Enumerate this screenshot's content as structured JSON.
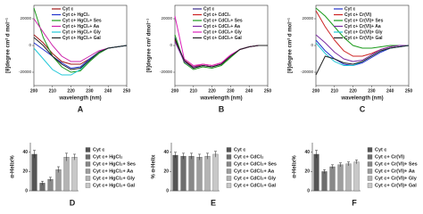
{
  "chart_data": [
    {
      "type": "line",
      "panel_label": "A",
      "xlabel": "wavelength (nm)",
      "ylabel": "[θ]degree cm² d mol⁻¹",
      "x": [
        200,
        205,
        210,
        215,
        220,
        225,
        230,
        235,
        240,
        245,
        250
      ],
      "xlim": [
        200,
        250
      ],
      "xticks": [
        200,
        210,
        220,
        230,
        240,
        250
      ],
      "ylim": [
        -30000,
        30000
      ],
      "yticks": [
        -20000,
        0,
        20000
      ],
      "series": [
        {
          "name": "Cyt c",
          "color": "#a01818",
          "values": [
            8000,
            2000,
            -6000,
            -12000,
            -14000,
            -14000,
            -10000,
            -5000,
            -2000,
            -1000,
            0
          ]
        },
        {
          "name": "Cyt c+ HgCl₂",
          "color": "#2233cc",
          "values": [
            2000,
            -3000,
            -8000,
            -13000,
            -17000,
            -16000,
            -10000,
            -5000,
            -2000,
            -1000,
            0
          ]
        },
        {
          "name": "Cyt c+ HgCl₂+ Ses",
          "color": "#1a9a1a",
          "values": [
            28000,
            6000,
            -8000,
            -16000,
            -20000,
            -19000,
            -12000,
            -6000,
            -2000,
            -1000,
            0
          ]
        },
        {
          "name": "Cyt c+ HgCl₂+ Aa",
          "color": "#cc22aa",
          "values": [
            20000,
            10000,
            0,
            -8000,
            -12000,
            -12000,
            -8000,
            -4000,
            -2000,
            -1000,
            0
          ]
        },
        {
          "name": "Cyt c+ HgCl₂+ Gly",
          "color": "#22c8d8",
          "values": [
            -2000,
            -10000,
            -18000,
            -22000,
            -22000,
            -18000,
            -11000,
            -5000,
            -2000,
            -1000,
            0
          ]
        },
        {
          "name": "Cyt c+ HgCl₂+ Gal",
          "color": "#222222",
          "values": [
            6000,
            0,
            -8000,
            -14000,
            -18000,
            -17000,
            -11000,
            -5000,
            -2000,
            -1000,
            0
          ]
        }
      ]
    },
    {
      "type": "line",
      "panel_label": "B",
      "xlabel": "wavelength (nm)",
      "ylabel": "[θ]degree cm² dmol⁻¹",
      "x": [
        200,
        205,
        210,
        215,
        220,
        225,
        230,
        235,
        240,
        245,
        250
      ],
      "xlim": [
        200,
        250
      ],
      "xticks": [
        200,
        210,
        220,
        230,
        240,
        250
      ],
      "ylim": [
        -30000,
        30000
      ],
      "yticks": [
        -20000,
        0,
        20000
      ],
      "series": [
        {
          "name": "Cyt c",
          "color": "#3a2a8a",
          "values": [
            6000,
            -12000,
            -17000,
            -15000,
            -16000,
            -14000,
            -8000,
            -3000,
            -1000,
            0,
            0
          ]
        },
        {
          "name": "Cyt c+ CdCl₂",
          "color": "#cc2222",
          "values": [
            4000,
            -11000,
            -16000,
            -14000,
            -15000,
            -13000,
            -8000,
            -3000,
            -1000,
            0,
            0
          ]
        },
        {
          "name": "Cyt c+ CdCl₂+ Ses",
          "color": "#1a9a1a",
          "values": [
            8000,
            -13000,
            -18000,
            -16000,
            -17000,
            -15000,
            -9000,
            -3000,
            -1000,
            0,
            0
          ]
        },
        {
          "name": "Cyt c+ CdCl₂+ Aa",
          "color": "#7a2aa0",
          "values": [
            3000,
            -12000,
            -16000,
            -15000,
            -16000,
            -14000,
            -8000,
            -3000,
            -1000,
            0,
            0
          ]
        },
        {
          "name": "Cyt c+ CdCl₂+ Gly",
          "color": "#dd22bb",
          "values": [
            22000,
            -10000,
            -15000,
            -14000,
            -15000,
            -13000,
            -7000,
            -3000,
            -1000,
            0,
            0
          ]
        },
        {
          "name": "Cyt c+ CdCl₂+ Gal",
          "color": "#222222",
          "values": [
            5000,
            -11000,
            -17000,
            -15000,
            -16000,
            -14000,
            -8000,
            -3000,
            -1000,
            0,
            0
          ]
        }
      ]
    },
    {
      "type": "line",
      "panel_label": "C",
      "xlabel": "wavelength (nm)",
      "ylabel": "[θ]degree cm² d mol⁻¹",
      "x": [
        200,
        205,
        210,
        215,
        220,
        225,
        230,
        235,
        240,
        245,
        250
      ],
      "xlim": [
        200,
        250
      ],
      "xticks": [
        200,
        210,
        220,
        230,
        240,
        250
      ],
      "ylim": [
        -30000,
        30000
      ],
      "yticks": [
        -20000,
        0,
        20000
      ],
      "series": [
        {
          "name": "Cyt c",
          "color": "#2233cc",
          "values": [
            4000,
            -4000,
            -10000,
            -14000,
            -15000,
            -13000,
            -9000,
            -5000,
            -2000,
            -1000,
            0
          ]
        },
        {
          "name": "Cyt c+ Cr(VI)",
          "color": "#cc2222",
          "values": [
            26000,
            14000,
            4000,
            -4000,
            -8000,
            -8000,
            -6000,
            -3000,
            -1000,
            0,
            0
          ]
        },
        {
          "name": "Cyt c+ Cr(VI)+ Ses",
          "color": "#1a9a1a",
          "values": [
            28000,
            22000,
            14000,
            6000,
            0,
            -2000,
            -2000,
            -1000,
            0,
            0,
            0
          ]
        },
        {
          "name": "Cyt c+ Cr(VI)+ Aa",
          "color": "#7a2aa0",
          "values": [
            8000,
            2000,
            -5000,
            -10000,
            -12000,
            -11000,
            -7000,
            -3000,
            -1000,
            0,
            0
          ]
        },
        {
          "name": "Cyt c+ Cr(VI)+ Gly",
          "color": "#22c8d8",
          "values": [
            2000,
            -6000,
            -12000,
            -15000,
            -15000,
            -12000,
            -8000,
            -4000,
            -2000,
            -1000,
            0
          ]
        },
        {
          "name": "Cyt c+ Cr(VI)+ Gal",
          "color": "#222222",
          "values": [
            -22000,
            -8000,
            -10000,
            -13000,
            -14000,
            -12000,
            -8000,
            -4000,
            -2000,
            -1000,
            0
          ]
        }
      ]
    },
    {
      "type": "bar",
      "panel_label": "D",
      "ylabel": "α-Helix%",
      "categories": [
        "Cyt c",
        "Cyt c+ HgCl₂",
        "Cyt c+ HgCl₂+ Ses",
        "Cyt c+ HgCl₂+ Aa",
        "Cyt c+ HgCl₂+ Gly",
        "Cyt c+ HgCl₂+ Gal"
      ],
      "values": [
        38,
        8,
        12,
        22,
        35,
        35
      ],
      "errors": [
        4,
        2,
        2,
        3,
        4,
        3
      ],
      "colors": [
        "#555555",
        "#6e6e6e",
        "#888888",
        "#9e9e9e",
        "#b4b4b4",
        "#c8c8c8"
      ],
      "ylim": [
        0,
        50
      ],
      "yticks": [
        0,
        20,
        40
      ]
    },
    {
      "type": "bar",
      "panel_label": "E",
      "ylabel": "% α-Helix",
      "categories": [
        "Cyt c",
        "Cyt c+ CdCl₂",
        "Cyt c+ CdCl₂+ Ses",
        "Cyt c+ CdCl₂+ Aa",
        "Cyt c+ CdCl₂+ Gly",
        "Cyt c+ CdCl₂+ Gal"
      ],
      "values": [
        37,
        36,
        36,
        35,
        36,
        38
      ],
      "errors": [
        3,
        3,
        3,
        3,
        3,
        3
      ],
      "colors": [
        "#555555",
        "#6e6e6e",
        "#888888",
        "#9e9e9e",
        "#b4b4b4",
        "#c8c8c8"
      ],
      "ylim": [
        0,
        50
      ],
      "yticks": [
        0,
        20,
        40
      ]
    },
    {
      "type": "bar",
      "panel_label": "F",
      "ylabel": "α-Helix%",
      "categories": [
        "Cyt c",
        "Cyt c+ Cr(VI)",
        "Cyt c+ Cr(VI)+ Ses",
        "Cyt c+ Cr(VI)+ Aa",
        "Cyt c+ Cr(VI)+ Gly",
        "Cyt c+ Cr(VI)+ Gal"
      ],
      "values": [
        38,
        20,
        25,
        27,
        28,
        30
      ],
      "errors": [
        4,
        2,
        2,
        2,
        2,
        2
      ],
      "colors": [
        "#555555",
        "#6e6e6e",
        "#888888",
        "#9e9e9e",
        "#b4b4b4",
        "#c8c8c8"
      ],
      "ylim": [
        0,
        50
      ],
      "yticks": [
        0,
        20,
        40
      ]
    }
  ]
}
